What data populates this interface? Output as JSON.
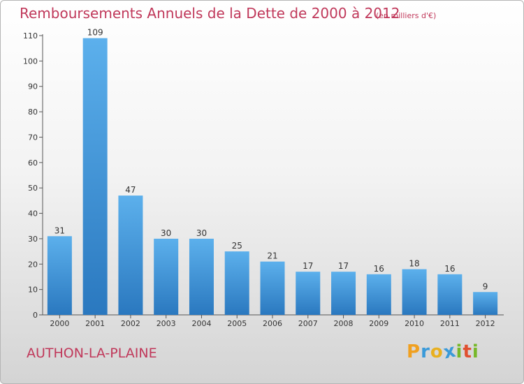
{
  "title": "Remboursements Annuels de la Dette de 2000 à 2012",
  "subtitle": "(en milliers d'€)",
  "city": "AUTHON-LA-PLAINE",
  "logo": {
    "letters": [
      "P",
      "r",
      "o",
      "x",
      "i",
      "t",
      "i"
    ],
    "colors": [
      "#f0a020",
      "#3a9ad9",
      "#e8b020",
      "#3a9ad9",
      "#77b82a",
      "#e05030",
      "#77b82a"
    ]
  },
  "colors": {
    "bar": "#4a9ee0",
    "bar_dark": "#2d7cc1",
    "text": "#c0385a"
  },
  "chart_data": {
    "type": "bar",
    "title": "Remboursements Annuels de la Dette de 2000 à 2012",
    "subtitle": "(en milliers d'€)",
    "categories": [
      "2000",
      "2001",
      "2002",
      "2003",
      "2004",
      "2005",
      "2006",
      "2007",
      "2008",
      "2009",
      "2010",
      "2011",
      "2012"
    ],
    "values": [
      31,
      109,
      47,
      30,
      30,
      25,
      21,
      17,
      17,
      16,
      18,
      16,
      9
    ],
    "yticks": [
      0,
      10,
      20,
      30,
      40,
      50,
      60,
      70,
      80,
      90,
      100,
      110
    ],
    "ylim": [
      0,
      110
    ],
    "grid": false,
    "data_labels": true
  }
}
